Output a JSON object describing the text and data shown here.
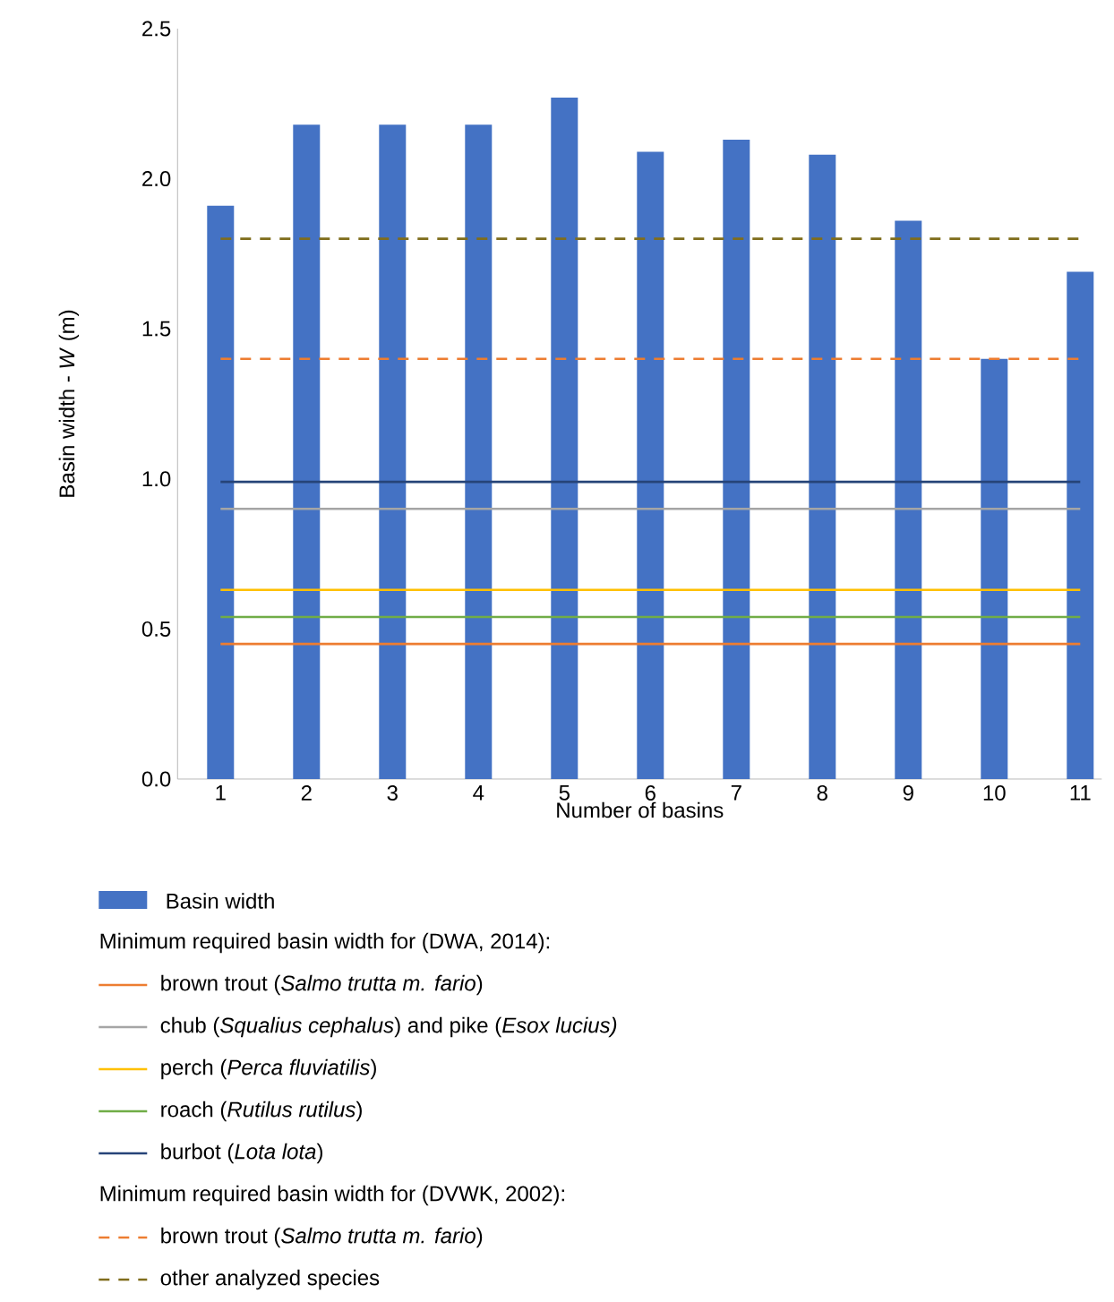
{
  "chart_data": {
    "type": "bar",
    "xlabel": "Number of basins",
    "ylabel": "Basin width - *W* (m)",
    "categories": [
      "1",
      "2",
      "3",
      "4",
      "5",
      "6",
      "7",
      "8",
      "9",
      "10",
      "11"
    ],
    "series": [
      {
        "name": "Basin width",
        "color": "#4472c4",
        "values": [
          1.91,
          2.18,
          2.18,
          2.18,
          2.27,
          2.09,
          2.13,
          2.08,
          1.86,
          1.4,
          1.69
        ]
      },
      {
        "type": "line",
        "line_style": "solid",
        "name": "brown trout (*Salmo trutta m. fario*)",
        "color": "#ed7d31",
        "values": [
          0.45,
          0.45,
          0.45,
          0.45,
          0.45,
          0.45,
          0.45,
          0.45,
          0.45,
          0.45,
          0.45
        ]
      },
      {
        "type": "line",
        "line_style": "solid",
        "name": "chub (*Squalius cephalus*) and pike (*Esox lucius)*",
        "color": "#a5a5a5",
        "values": [
          0.9,
          0.9,
          0.9,
          0.9,
          0.9,
          0.9,
          0.9,
          0.9,
          0.9,
          0.9,
          0.9
        ]
      },
      {
        "type": "line",
        "line_style": "solid",
        "name": "perch (*Perca fluviatilis*)",
        "color": "#ffc000",
        "values": [
          0.63,
          0.63,
          0.63,
          0.63,
          0.63,
          0.63,
          0.63,
          0.63,
          0.63,
          0.63,
          0.63
        ]
      },
      {
        "type": "line",
        "line_style": "solid",
        "name": "roach (*Rutilus rutilus*)",
        "color": "#70ad47",
        "values": [
          0.54,
          0.54,
          0.54,
          0.54,
          0.54,
          0.54,
          0.54,
          0.54,
          0.54,
          0.54,
          0.54
        ]
      },
      {
        "type": "line",
        "line_style": "solid",
        "name": "burbot (*Lota lota*)",
        "color": "#264478",
        "values": [
          0.99,
          0.99,
          0.99,
          0.99,
          0.99,
          0.99,
          0.99,
          0.99,
          0.99,
          0.99,
          0.99
        ]
      },
      {
        "type": "line",
        "line_style": "dashed",
        "name": "brown trout (*Salmo trutta m. fario*)",
        "color": "#ed7d31",
        "values": [
          1.4,
          1.4,
          1.4,
          1.4,
          1.4,
          1.4,
          1.4,
          1.4,
          1.4,
          1.4,
          1.4
        ]
      },
      {
        "type": "line",
        "line_style": "dashed",
        "name": "other analyzed species",
        "color": "#7f6d1c",
        "values": [
          1.8,
          1.8,
          1.8,
          1.8,
          1.8,
          1.8,
          1.8,
          1.8,
          1.8,
          1.8,
          1.8
        ]
      }
    ],
    "annotations": [
      "Minimum required basin width for (DWA, 2014):",
      "Minimum required basin width for (DVWK, 2002):"
    ],
    "ylim": [
      0,
      2.5
    ],
    "yticks": [
      {
        "value": 0,
        "label": "0.0"
      },
      {
        "value": 0.5,
        "label": "0.5"
      },
      {
        "value": 1,
        "label": "1.0"
      },
      {
        "value": 1.5,
        "label": "1.5"
      },
      {
        "value": 2,
        "label": "2.0"
      },
      {
        "value": 2.5,
        "label": "2.5"
      }
    ],
    "grid": false,
    "legend": "bottom"
  }
}
